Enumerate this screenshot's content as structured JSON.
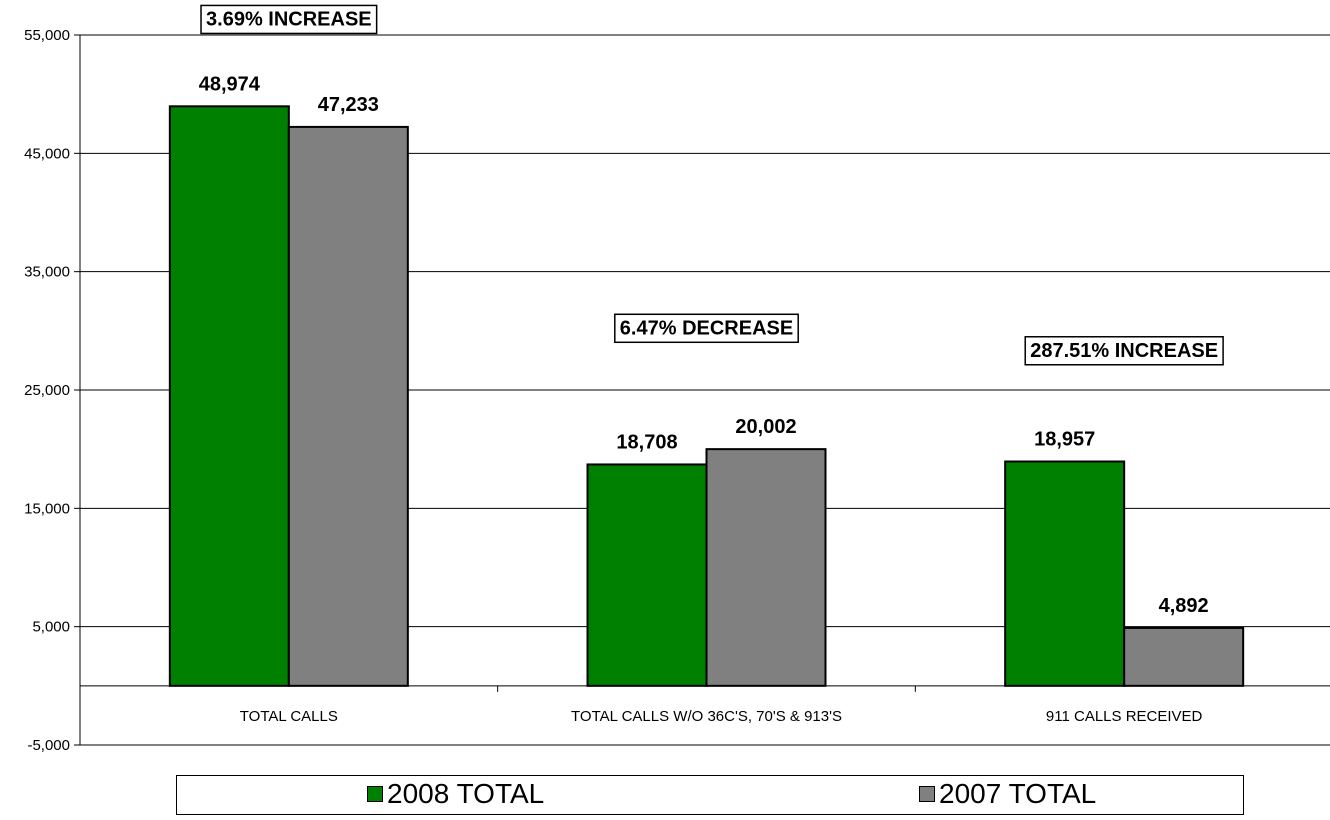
{
  "chart_data": {
    "type": "bar",
    "title": "",
    "xlabel": "",
    "ylabel": "",
    "ylim": [
      -5000,
      55000
    ],
    "y_ticks": [
      -5000,
      5000,
      15000,
      25000,
      35000,
      45000,
      55000
    ],
    "y_tick_labels": [
      "-5,000",
      "5,000",
      "15,000",
      "25,000",
      "35,000",
      "45,000",
      "55,000"
    ],
    "grid": true,
    "legend_position": "bottom",
    "categories": [
      "TOTAL CALLS",
      "TOTAL CALLS W/O 36C'S, 70'S & 913'S",
      "911 CALLS RECEIVED"
    ],
    "series": [
      {
        "name": "2008 TOTAL",
        "color": "#008000",
        "values": [
          48974,
          18708,
          18957
        ],
        "value_labels": [
          "48,974",
          "18,708",
          "18,957"
        ]
      },
      {
        "name": "2007 TOTAL",
        "color": "#808080",
        "values": [
          47233,
          20002,
          4892
        ],
        "value_labels": [
          "47,233",
          "20,002",
          "4,892"
        ]
      }
    ],
    "annotations": [
      {
        "text": "3.69% INCREASE",
        "category_index": 0
      },
      {
        "text": "6.47% DECREASE",
        "category_index": 1
      },
      {
        "text": "287.51% INCREASE",
        "category_index": 2
      }
    ]
  }
}
